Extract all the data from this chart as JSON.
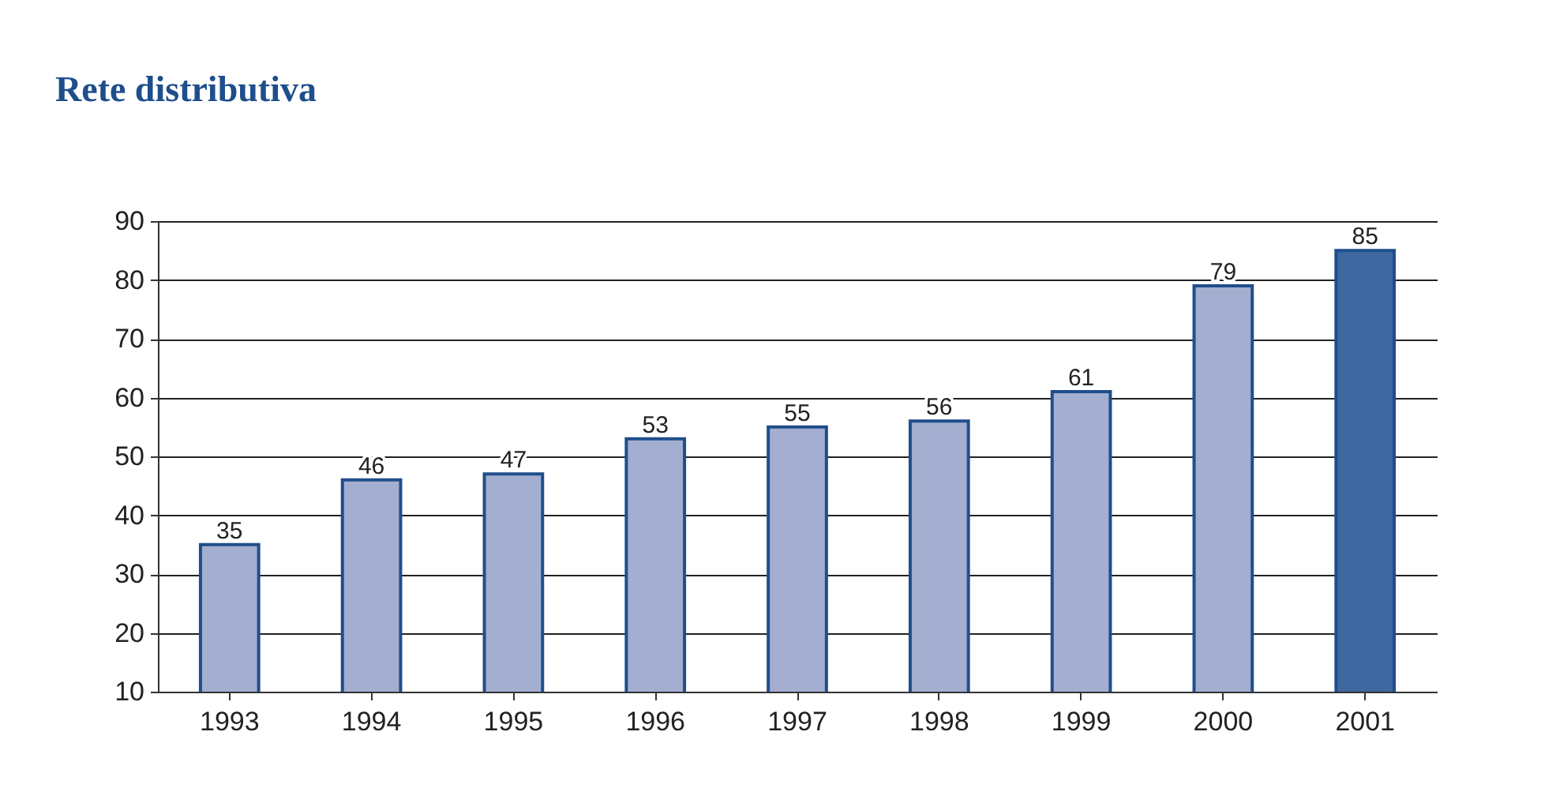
{
  "chart_data": {
    "type": "bar",
    "title": "Rete distributiva",
    "categories": [
      "1993",
      "1994",
      "1995",
      "1996",
      "1997",
      "1998",
      "1999",
      "2000",
      "2001"
    ],
    "values": [
      35,
      46,
      47,
      53,
      55,
      56,
      61,
      79,
      85
    ],
    "colors": [
      "#a3aed0",
      "#a3aed0",
      "#a3aed0",
      "#a3aed0",
      "#a3aed0",
      "#a3aed0",
      "#a3aed0",
      "#a3aed0",
      "#3f67a0"
    ],
    "ylim": [
      10,
      90
    ],
    "yticks": [
      10,
      20,
      30,
      40,
      50,
      60,
      70,
      80,
      90
    ],
    "grid": "y",
    "data_labels": true
  }
}
